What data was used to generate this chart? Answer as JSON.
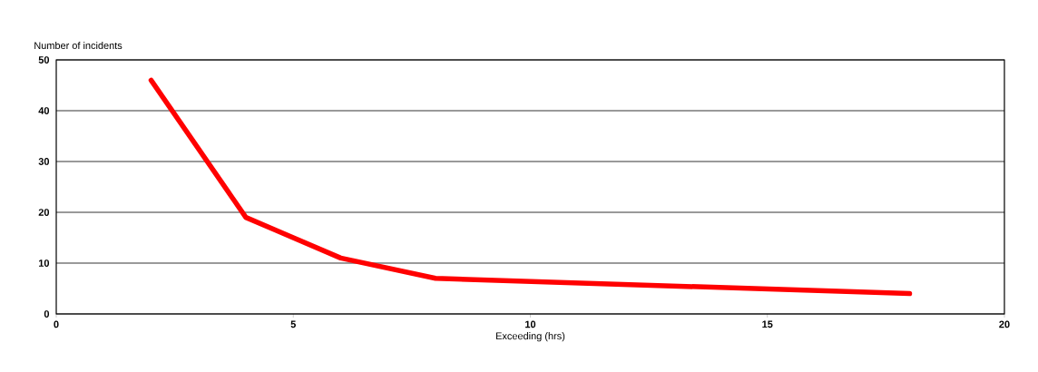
{
  "chart_data": {
    "type": "line",
    "xlabel": "Exceeding (hrs)",
    "ylabel": "Number of  incidents",
    "x": [
      2,
      4,
      6,
      8,
      18
    ],
    "series": [
      {
        "color": "#ff0000",
        "values": [
          46,
          19,
          11,
          7,
          4
        ]
      }
    ],
    "xlim": [
      0,
      20
    ],
    "ylim": [
      0,
      50
    ],
    "xticks": [
      0,
      5,
      10,
      15,
      20
    ],
    "yticks": [
      0,
      10,
      20,
      30,
      40,
      50
    ],
    "grid": "y",
    "marker": "none",
    "line_style": "solid"
  }
}
